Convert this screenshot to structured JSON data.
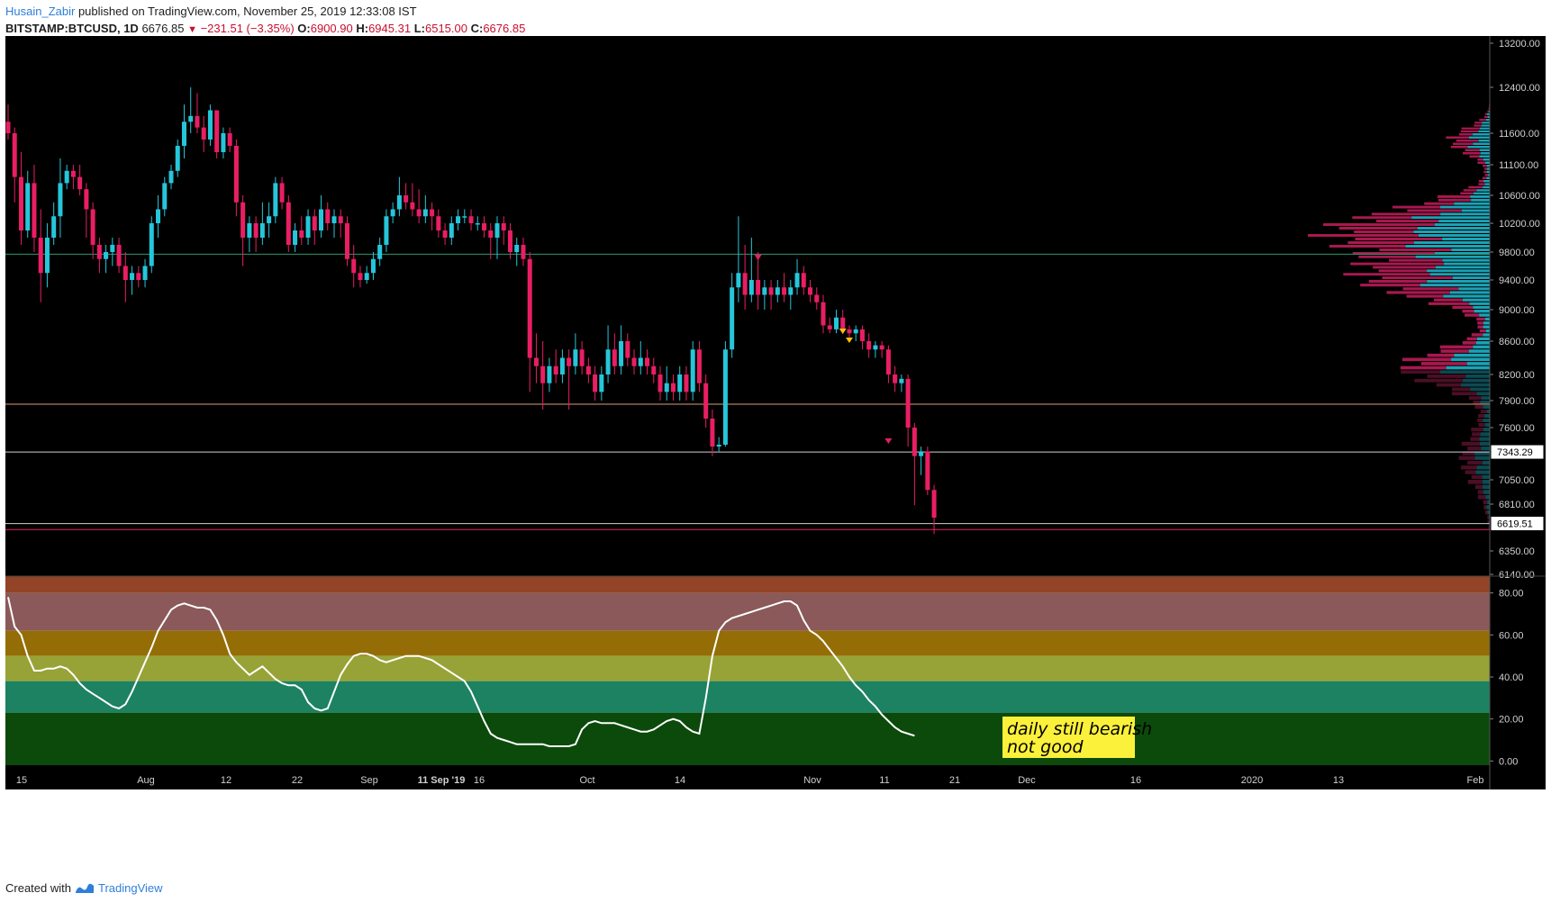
{
  "header": {
    "author": "Husain_Zabir",
    "published_text": "published on TradingView.com, November 25, 2019 12:33:08 IST",
    "symbol": "BITSTAMP:BTCUSD, 1D",
    "last": "6676.85",
    "change": "−231.51 (−3.35%)",
    "o_label": "O:",
    "o_value": "6900.90",
    "h_label": "H:",
    "h_value": "6945.31",
    "l_label": "L:",
    "l_value": "6515.00",
    "c_label": "C:",
    "c_value": "6676.85"
  },
  "footer": {
    "created_with": "Created with",
    "brand": "TradingView"
  },
  "colors": {
    "up": "#26c6da",
    "down": "#e91e63",
    "background": "#000000",
    "green_line": "#2e9a6e",
    "orange_line": "#d9a17a",
    "white_line": "#cfcfcf",
    "magenta_line": "#e91e63"
  },
  "chart_data": [
    {
      "type": "candlestick",
      "title": "BITSTAMP:BTCUSD, 1D",
      "x_tick_labels": [
        "15",
        "Aug",
        "12",
        "22",
        "Sep",
        "11 Sep '19",
        "16",
        "Oct",
        "14",
        "Nov",
        "11",
        "21",
        "Dec",
        "16",
        "2020",
        "13",
        "Feb"
      ],
      "y_tick_labels": [
        "13200.00",
        "12400.00",
        "11600.00",
        "11100.00",
        "10600.00",
        "10200.00",
        "9800.00",
        "9400.00",
        "9000.00",
        "8600.00",
        "8200.00",
        "7900.00",
        "7600.00",
        "7050.00",
        "6810.00",
        "6350.00",
        "6140.00"
      ],
      "price_labels": [
        "7343.29",
        "6619.51"
      ],
      "horizontal_levels": [
        9770,
        7860,
        7343,
        6619
      ],
      "candles_ohlc": [
        [
          11800,
          12100,
          11500,
          11600
        ],
        [
          11600,
          11700,
          10500,
          10900
        ],
        [
          10900,
          11300,
          9900,
          10100
        ],
        [
          10100,
          11000,
          10000,
          10800
        ],
        [
          10800,
          11100,
          9800,
          10000
        ],
        [
          10000,
          10400,
          9100,
          9500
        ],
        [
          9500,
          10200,
          9300,
          10000
        ],
        [
          10000,
          10500,
          9900,
          10300
        ],
        [
          10300,
          11200,
          10000,
          10800
        ],
        [
          10800,
          11100,
          10700,
          11000
        ],
        [
          11000,
          11100,
          10700,
          10900
        ],
        [
          10900,
          11100,
          10600,
          10700
        ],
        [
          10700,
          10800,
          10000,
          10400
        ],
        [
          10400,
          10500,
          9700,
          9900
        ],
        [
          9900,
          10000,
          9500,
          9700
        ],
        [
          9700,
          9900,
          9500,
          9800
        ],
        [
          9800,
          10000,
          9600,
          9900
        ],
        [
          9900,
          10000,
          9500,
          9600
        ],
        [
          9600,
          9800,
          9100,
          9400
        ],
        [
          9400,
          9600,
          9200,
          9500
        ],
        [
          9500,
          9600,
          9300,
          9400
        ],
        [
          9400,
          9700,
          9300,
          9600
        ],
        [
          9600,
          10300,
          9500,
          10200
        ],
        [
          10200,
          10600,
          10000,
          10400
        ],
        [
          10400,
          10900,
          10300,
          10800
        ],
        [
          10800,
          11100,
          10700,
          11000
        ],
        [
          11000,
          11500,
          10900,
          11400
        ],
        [
          11400,
          12100,
          11200,
          11800
        ],
        [
          11800,
          12400,
          11600,
          11900
        ],
        [
          11900,
          12300,
          11600,
          11700
        ],
        [
          11700,
          11900,
          11300,
          11500
        ],
        [
          11500,
          12100,
          11400,
          12000
        ],
        [
          12000,
          12000,
          11200,
          11300
        ],
        [
          11300,
          11700,
          11200,
          11600
        ],
        [
          11600,
          11700,
          11300,
          11400
        ],
        [
          11400,
          11500,
          10300,
          10500
        ],
        [
          10500,
          10600,
          9600,
          10000
        ],
        [
          10000,
          10300,
          9800,
          10200
        ],
        [
          10200,
          10300,
          9800,
          10000
        ],
        [
          10000,
          10500,
          9900,
          10200
        ],
        [
          10200,
          10500,
          10000,
          10300
        ],
        [
          10300,
          10900,
          10200,
          10800
        ],
        [
          10800,
          10900,
          10400,
          10500
        ],
        [
          10500,
          10600,
          9800,
          9900
        ],
        [
          9900,
          10200,
          9800,
          10100
        ],
        [
          10100,
          10300,
          9900,
          10000
        ],
        [
          10000,
          10400,
          9900,
          10300
        ],
        [
          10300,
          10400,
          9900,
          10100
        ],
        [
          10100,
          10600,
          10000,
          10400
        ],
        [
          10400,
          10500,
          10100,
          10200
        ],
        [
          10200,
          10400,
          10000,
          10300
        ],
        [
          10300,
          10400,
          10000,
          10200
        ],
        [
          10200,
          10300,
          9600,
          9700
        ],
        [
          9700,
          9900,
          9300,
          9500
        ],
        [
          9500,
          9600,
          9300,
          9400
        ],
        [
          9400,
          9600,
          9350,
          9500
        ],
        [
          9500,
          9800,
          9400,
          9700
        ],
        [
          9700,
          10000,
          9600,
          9900
        ],
        [
          9900,
          10400,
          9800,
          10300
        ],
        [
          10300,
          10500,
          10200,
          10400
        ],
        [
          10400,
          10900,
          10300,
          10600
        ],
        [
          10600,
          10800,
          10400,
          10500
        ],
        [
          10500,
          10800,
          10300,
          10400
        ],
        [
          10400,
          10700,
          10200,
          10300
        ],
        [
          10300,
          10600,
          10200,
          10400
        ],
        [
          10400,
          10500,
          10100,
          10300
        ],
        [
          10300,
          10400,
          10000,
          10100
        ],
        [
          10100,
          10200,
          9900,
          10000
        ],
        [
          10000,
          10300,
          9900,
          10200
        ],
        [
          10200,
          10400,
          10100,
          10300
        ],
        [
          10300,
          10400,
          10200,
          10300
        ],
        [
          10300,
          10400,
          10100,
          10200
        ],
        [
          10200,
          10300,
          10100,
          10200
        ],
        [
          10200,
          10300,
          10000,
          10100
        ],
        [
          10100,
          10200,
          9700,
          10000
        ],
        [
          10000,
          10300,
          9700,
          10200
        ],
        [
          10200,
          10300,
          9900,
          10100
        ],
        [
          10100,
          10200,
          9700,
          9800
        ],
        [
          9800,
          10000,
          9600,
          9900
        ],
        [
          9900,
          10000,
          9600,
          9700
        ],
        [
          9700,
          9800,
          8000,
          8400
        ],
        [
          8400,
          8700,
          8100,
          8300
        ],
        [
          8300,
          8600,
          7800,
          8100
        ],
        [
          8100,
          8400,
          8000,
          8300
        ],
        [
          8300,
          8500,
          8100,
          8200
        ],
        [
          8200,
          8500,
          8100,
          8400
        ],
        [
          8400,
          8500,
          7800,
          8300
        ],
        [
          8300,
          8700,
          8200,
          8500
        ],
        [
          8500,
          8600,
          8200,
          8300
        ],
        [
          8300,
          8400,
          8100,
          8200
        ],
        [
          8200,
          8300,
          7900,
          8000
        ],
        [
          8000,
          8300,
          7900,
          8200
        ],
        [
          8200,
          8800,
          8100,
          8500
        ],
        [
          8500,
          8700,
          8200,
          8300
        ],
        [
          8300,
          8800,
          8200,
          8600
        ],
        [
          8600,
          8700,
          8300,
          8400
        ],
        [
          8400,
          8500,
          8200,
          8300
        ],
        [
          8300,
          8600,
          8200,
          8400
        ],
        [
          8400,
          8500,
          8200,
          8300
        ],
        [
          8300,
          8400,
          8100,
          8200
        ],
        [
          8200,
          8300,
          7900,
          8000
        ],
        [
          8000,
          8300,
          7900,
          8100
        ],
        [
          8100,
          8200,
          7900,
          8000
        ],
        [
          8000,
          8300,
          7900,
          8200
        ],
        [
          8200,
          8300,
          7900,
          8000
        ],
        [
          8000,
          8600,
          7900,
          8500
        ],
        [
          8500,
          8600,
          8000,
          8100
        ],
        [
          8100,
          8200,
          7600,
          7700
        ],
        [
          7700,
          7800,
          7300,
          7400
        ],
        [
          7400,
          7500,
          7350,
          7420
        ],
        [
          7420,
          8600,
          7400,
          8500
        ],
        [
          8500,
          9500,
          8400,
          9300
        ],
        [
          9300,
          10300,
          9100,
          9500
        ],
        [
          9500,
          9900,
          9000,
          9200
        ],
        [
          9200,
          10000,
          9100,
          9400
        ],
        [
          9400,
          9800,
          9000,
          9200
        ],
        [
          9200,
          9400,
          9000,
          9300
        ],
        [
          9300,
          9400,
          9000,
          9200
        ],
        [
          9200,
          9400,
          9100,
          9300
        ],
        [
          9300,
          9500,
          9100,
          9200
        ],
        [
          9200,
          9400,
          9000,
          9300
        ],
        [
          9300,
          9700,
          9200,
          9500
        ],
        [
          9500,
          9600,
          9200,
          9300
        ],
        [
          9300,
          9400,
          9100,
          9200
        ],
        [
          9200,
          9300,
          9000,
          9100
        ],
        [
          9100,
          9200,
          8700,
          8800
        ],
        [
          8800,
          8900,
          8700,
          8750
        ],
        [
          8750,
          9000,
          8700,
          8900
        ],
        [
          8900,
          9000,
          8700,
          8750
        ],
        [
          8750,
          8800,
          8600,
          8700
        ],
        [
          8700,
          8800,
          8600,
          8750
        ],
        [
          8750,
          8800,
          8500,
          8600
        ],
        [
          8600,
          8700,
          8400,
          8500
        ],
        [
          8500,
          8600,
          8400,
          8550
        ],
        [
          8550,
          8600,
          8400,
          8500
        ],
        [
          8500,
          8550,
          8100,
          8200
        ],
        [
          8200,
          8300,
          8000,
          8100
        ],
        [
          8100,
          8200,
          8000,
          8150
        ],
        [
          8150,
          8200,
          7400,
          7600
        ],
        [
          7600,
          7650,
          6800,
          7300
        ],
        [
          7300,
          7400,
          7100,
          7350
        ],
        [
          7350,
          7400,
          6900,
          6950
        ],
        [
          6950,
          7000,
          6515,
          6677
        ]
      ]
    },
    {
      "type": "line",
      "title": "Oscillator",
      "y_tick_labels": [
        "80.00",
        "60.00",
        "40.00",
        "20.00",
        "0.00"
      ],
      "ylim": [
        -2,
        88
      ],
      "bands": [
        {
          "from": 80,
          "to": 88,
          "color": "#934326"
        },
        {
          "from": 62,
          "to": 80,
          "color": "#8b5959"
        },
        {
          "from": 50,
          "to": 62,
          "color": "#946d06"
        },
        {
          "from": 38,
          "to": 50,
          "color": "#97a336"
        },
        {
          "from": 23,
          "to": 38,
          "color": "#1c8261"
        },
        {
          "from": 0,
          "to": 23,
          "color": "#0b4a0b"
        }
      ],
      "values": [
        78,
        64,
        60,
        50,
        43,
        43,
        44,
        44,
        45,
        44,
        41,
        37,
        34,
        32,
        30,
        28,
        26,
        25,
        27,
        33,
        40,
        47,
        54,
        62,
        67,
        72,
        74,
        75,
        74,
        73,
        73,
        72,
        67,
        60,
        51,
        47,
        44,
        41,
        43,
        45,
        42,
        39,
        37,
        36,
        36,
        34,
        28,
        25,
        24,
        25,
        33,
        41,
        46,
        50,
        51,
        51,
        50,
        48,
        47,
        48,
        49,
        50,
        50,
        50,
        49,
        48,
        46,
        44,
        42,
        40,
        38,
        33,
        26,
        19,
        13,
        11,
        10,
        9,
        8,
        8,
        8,
        8,
        8,
        7,
        7,
        7,
        7,
        8,
        15,
        18,
        19,
        18,
        18,
        18,
        17,
        16,
        15,
        14,
        14,
        15,
        17,
        19,
        20,
        19,
        16,
        14,
        13,
        30,
        50,
        62,
        66,
        68,
        69,
        70,
        71,
        72,
        73,
        74,
        75,
        76,
        76,
        74,
        67,
        62,
        60,
        57,
        53,
        49,
        45,
        40,
        36,
        33,
        29,
        26,
        22,
        19,
        16,
        14,
        13,
        12
      ]
    }
  ],
  "annotation": {
    "line1": "daily still bearish",
    "line2": "not good"
  }
}
